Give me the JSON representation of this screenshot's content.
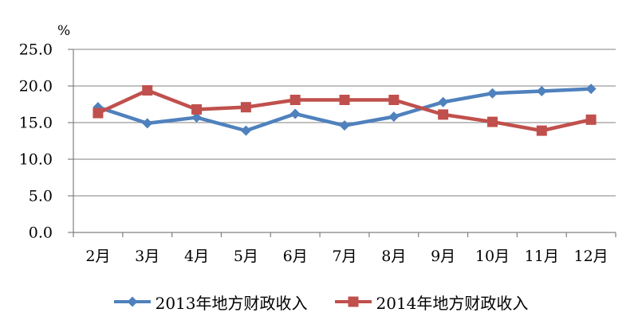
{
  "figure": {
    "background": "#ffffff"
  },
  "chart_data": {
    "type": "line",
    "title": "",
    "ylabel": "%",
    "xlabel": "",
    "categories": [
      "2月",
      "3月",
      "4月",
      "5月",
      "6月",
      "7月",
      "8月",
      "9月",
      "10月",
      "11月",
      "12月"
    ],
    "series": [
      {
        "name": "2013年地方财政收入",
        "color": "#4F81BD",
        "marker": "diamond",
        "values": [
          17.1,
          14.9,
          15.7,
          13.9,
          16.2,
          14.6,
          15.8,
          17.8,
          19.0,
          19.3,
          19.6
        ]
      },
      {
        "name": "2014年地方财政收入",
        "color": "#C0504D",
        "marker": "square",
        "values": [
          16.3,
          19.4,
          16.8,
          17.1,
          18.1,
          18.1,
          18.1,
          16.1,
          15.1,
          13.9,
          15.4
        ]
      }
    ],
    "ylim": [
      0,
      25
    ],
    "ytick_step": 5,
    "ytick_labels": [
      "0.0",
      "5.0",
      "10.0",
      "15.0",
      "20.0",
      "25.0"
    ],
    "grid": true,
    "legend_position": "bottom",
    "axis_color": "#808080",
    "gridline_color": "#9a9a9a",
    "text_color": "#000000"
  }
}
